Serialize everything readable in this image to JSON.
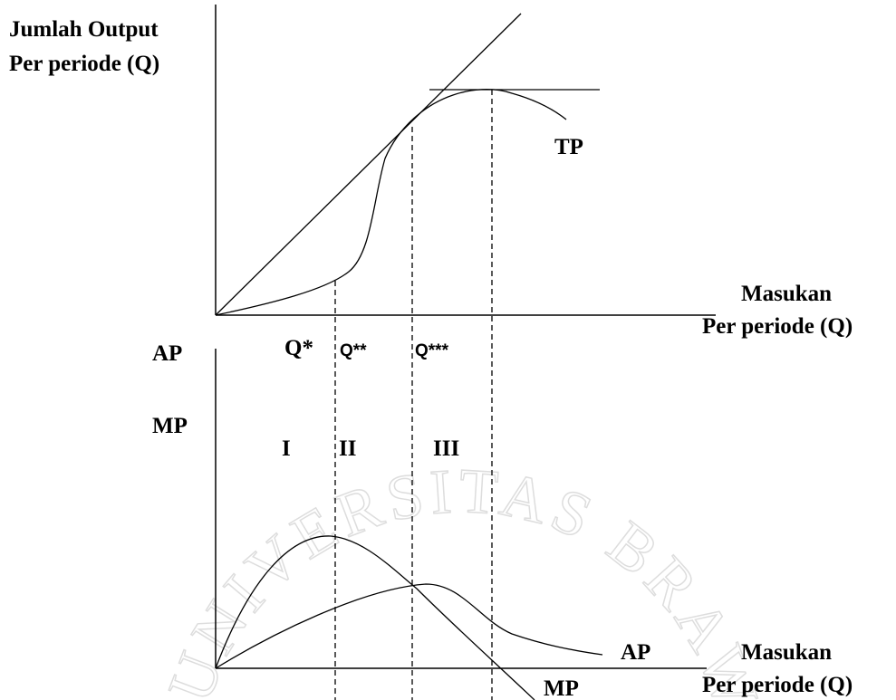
{
  "top_chart": {
    "y_label": [
      "Jumlah Output",
      "Per periode (Q)"
    ],
    "x_label": [
      "Masukan",
      "Per periode (Q)"
    ],
    "curve_label": "TP"
  },
  "bottom_chart": {
    "y_label": [
      "AP",
      "MP"
    ],
    "x_label": [
      "Masukan",
      "Per periode (Q)"
    ],
    "curve_labels": [
      "AP",
      "MP"
    ]
  },
  "points": [
    "Q*",
    "Q**",
    "Q***"
  ],
  "stages": [
    "I",
    "II",
    "III"
  ],
  "watermark": "UNIVERSITAS BRAWIJAYA"
}
